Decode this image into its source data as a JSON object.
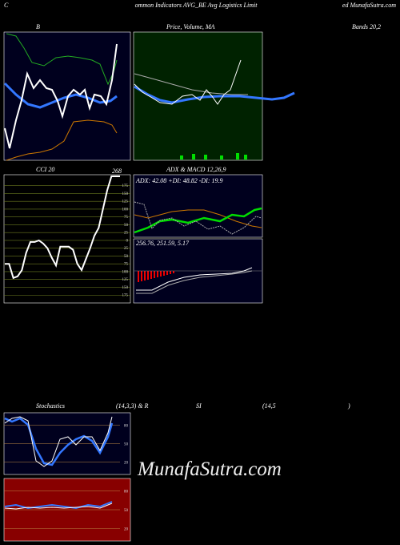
{
  "header": {
    "left": "C",
    "center": "ommon Indicators AVG_BE Avg Logistics Limit",
    "right": "ed MunafaSutra.com"
  },
  "panels": {
    "bollinger": {
      "title": "B"
    },
    "price": {
      "title": "Price, Volume, MA",
      "right_title": "Bands 20,2"
    },
    "cci": {
      "title": "CCI 20",
      "peak_label": "268",
      "values": [
        -75,
        -75,
        -120,
        -115,
        -95,
        -40,
        -5,
        -5,
        0,
        -10,
        -25,
        -55,
        -80,
        -20,
        -20,
        -20,
        -30,
        -75,
        -95,
        -60,
        -25,
        15,
        40,
        100,
        160,
        205,
        205,
        205
      ],
      "ylim": [
        -200,
        210
      ],
      "yticks": [
        175,
        150,
        125,
        100,
        75,
        50,
        25,
        0,
        {
          "value": -25,
          "label": "25"
        },
        {
          "value": -50,
          "label": "50"
        },
        {
          "value": -75,
          "label": "75"
        },
        {
          "value": -100,
          "label": "100"
        },
        {
          "value": -125,
          "label": "125"
        },
        {
          "value": -150,
          "label": "150"
        },
        {
          "value": -175,
          "label": "175"
        }
      ]
    },
    "adx": {
      "title": "ADX  & MACD 12,26,9",
      "readout": "ADX: 42.08  +DI: 48.82  -DI: 19.9"
    },
    "macd": {
      "readout": "256.76,  251.59,  5.17"
    },
    "stoch": {
      "title": "Stochastics",
      "params": "(14,3,3) & R",
      "rsi": "SI",
      "rsi_params": "(14,5",
      "close": ")",
      "yticks": [
        80,
        50,
        20
      ]
    },
    "rsi": {
      "yticks": [
        80,
        50,
        20
      ]
    }
  },
  "watermark": "MunafaSutra.com"
}
